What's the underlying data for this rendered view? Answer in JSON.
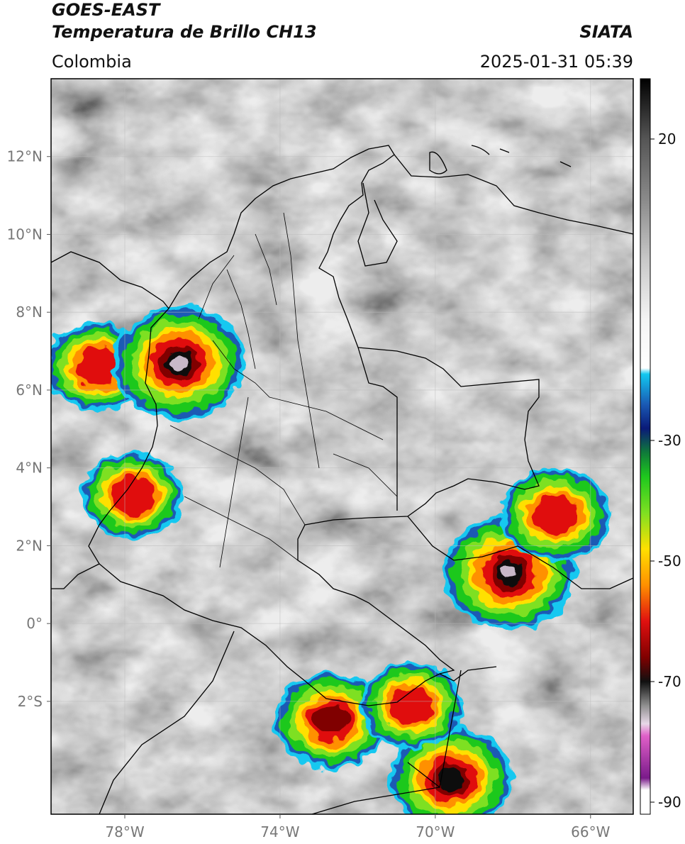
{
  "header": {
    "satellite": "GOES-EAST",
    "product": "Temperatura de Brillo CH13",
    "region": "Colombia",
    "source": "SIATA",
    "datetime": "2025-01-31 05:39"
  },
  "map": {
    "lon_range": [
      -79.9,
      -64.9
    ],
    "lat_range": [
      -4.9,
      14.0
    ],
    "lat_ticks": [
      {
        "lat": 12,
        "label": "12°N"
      },
      {
        "lat": 10,
        "label": "10°N"
      },
      {
        "lat": 8,
        "label": "8°N"
      },
      {
        "lat": 6,
        "label": "6°N"
      },
      {
        "lat": 4,
        "label": "4°N"
      },
      {
        "lat": 2,
        "label": "2°N"
      },
      {
        "lat": 0,
        "label": "0°"
      },
      {
        "lat": -2,
        "label": "2°S"
      }
    ],
    "lon_ticks": [
      {
        "lon": -78,
        "label": "78°W"
      },
      {
        "lon": -74,
        "label": "74°W"
      },
      {
        "lon": -70,
        "label": "70°W"
      },
      {
        "lon": -66,
        "label": "66°W"
      }
    ],
    "gridlines": true,
    "storm_cells": [
      {
        "name": "panama-west",
        "lon": -78.7,
        "lat": 6.6,
        "intensity": 0.6
      },
      {
        "name": "uraba",
        "lon": -76.6,
        "lat": 6.7,
        "intensity": 1.0
      },
      {
        "name": "pacific-coast",
        "lon": -77.8,
        "lat": 3.3,
        "intensity": 0.55
      },
      {
        "name": "vaupes-east",
        "lon": -68.1,
        "lat": 1.3,
        "intensity": 1.0
      },
      {
        "name": "guainia-east",
        "lon": -66.9,
        "lat": 2.8,
        "intensity": 0.65
      },
      {
        "name": "putumayo",
        "lon": -72.7,
        "lat": -2.5,
        "intensity": 0.7
      },
      {
        "name": "amazonas-south",
        "lon": -69.6,
        "lat": -4.0,
        "intensity": 0.85
      },
      {
        "name": "caqueta-east",
        "lon": -70.6,
        "lat": -2.1,
        "intensity": 0.55
      }
    ]
  },
  "colorbar": {
    "range": [
      -92,
      30
    ],
    "ticks": [
      {
        "value": 20,
        "label": "20"
      },
      {
        "value": -30,
        "label": "-30"
      },
      {
        "value": -50,
        "label": "-50"
      },
      {
        "value": -70,
        "label": "-70"
      },
      {
        "value": -90,
        "label": "-90"
      }
    ],
    "stops": [
      {
        "t": 30,
        "color": "#000000"
      },
      {
        "t": 20,
        "color": "#555555"
      },
      {
        "t": 10,
        "color": "#8a8a8a"
      },
      {
        "t": 0,
        "color": "#c8c8c8"
      },
      {
        "t": -10,
        "color": "#f4f4f4"
      },
      {
        "t": -18,
        "color": "#ffffff"
      },
      {
        "t": -19,
        "color": "#12c8f0"
      },
      {
        "t": -24,
        "color": "#1a5ab4"
      },
      {
        "t": -28,
        "color": "#0a1a78"
      },
      {
        "t": -32,
        "color": "#0f7a3a"
      },
      {
        "t": -36,
        "color": "#1ec81e"
      },
      {
        "t": -42,
        "color": "#7ee022"
      },
      {
        "t": -48,
        "color": "#ffe000"
      },
      {
        "t": -54,
        "color": "#ff9000"
      },
      {
        "t": -60,
        "color": "#e01010"
      },
      {
        "t": -66,
        "color": "#800000"
      },
      {
        "t": -70,
        "color": "#101010"
      },
      {
        "t": -74,
        "color": "#909090"
      },
      {
        "t": -77,
        "color": "#e8d8e8"
      },
      {
        "t": -79,
        "color": "#e060c8"
      },
      {
        "t": -86,
        "color": "#7a1a8a"
      },
      {
        "t": -88,
        "color": "#ffffff"
      },
      {
        "t": -92,
        "color": "#ffffff"
      }
    ]
  }
}
